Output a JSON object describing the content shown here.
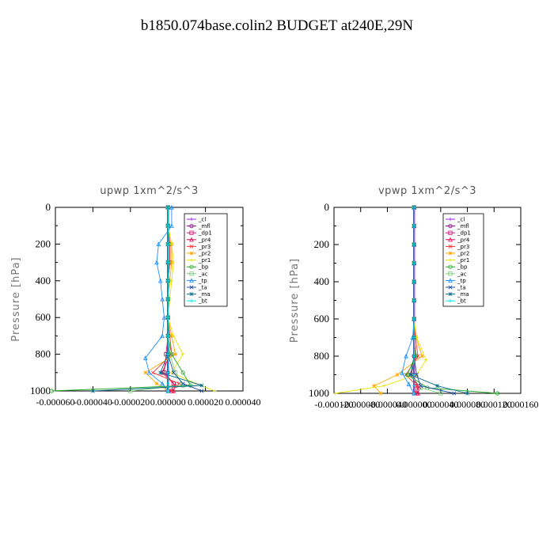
{
  "title": "b1850.074base.colin2  BUDGET at240E,29N",
  "colors": {
    "_cl": "#a020f0",
    "_mfl": "#8b008b",
    "_dp1": "#cd1076",
    "_pr4": "#e5004c",
    "_pr3": "#ff3030",
    "_pr2": "#ffa500",
    "_pr1": "#e6e600",
    "_bp": "#22aa22",
    "_ac": "#7ccd7c",
    "_tp": "#1e90ff",
    "_ta": "#1f4fa0",
    "_ma": "#00688b",
    "_bt": "#00e5ee"
  },
  "chart_data": [
    {
      "type": "line",
      "title": "upwp   1xm^2/s^3",
      "ylabel": "Pressure [hPa]",
      "xlabel": "",
      "ylim": [
        1000,
        0
      ],
      "xlim": [
        -6e-05,
        4e-05
      ],
      "yticks": [
        "0",
        "200",
        "400",
        "600",
        "800",
        "1000"
      ],
      "xticks": [
        "-0.000060",
        "-0.000040",
        "-0.000020",
        "0.000000",
        "0.000020",
        "0.000040"
      ],
      "legend": [
        "_cl",
        "_mfl",
        "_dp1",
        "_pr4",
        "_pr3",
        "_pr2",
        "_pr1",
        "_bp",
        "_ac",
        "_tp",
        "_ta",
        "_ma",
        "_bt"
      ],
      "legend_position": "top-right",
      "series": [
        {
          "name": "_cl",
          "x": [
            0,
            0,
            0,
            0,
            0,
            0,
            0,
            0,
            0,
            0,
            0
          ],
          "y": [
            0,
            100,
            200,
            300,
            400,
            500,
            600,
            700,
            800,
            900,
            1000
          ]
        },
        {
          "name": "_mfl",
          "x": [
            0,
            0,
            0,
            0,
            0,
            0,
            0,
            0,
            0,
            0,
            0
          ],
          "y": [
            0,
            100,
            200,
            300,
            400,
            500,
            600,
            700,
            800,
            900,
            1000
          ]
        },
        {
          "name": "_dp1",
          "x": [
            0,
            0,
            1e-06,
            1e-06,
            0,
            0,
            0,
            0,
            -1e-06,
            -2e-06,
            3e-06,
            2e-06
          ],
          "y": [
            0,
            100,
            200,
            300,
            400,
            500,
            600,
            700,
            800,
            900,
            960,
            1000
          ]
        },
        {
          "name": "_pr4",
          "x": [
            0,
            0,
            0,
            0,
            0,
            0,
            0,
            0,
            1e-06,
            -3e-06,
            4e-06,
            3e-06
          ],
          "y": [
            0,
            100,
            200,
            300,
            400,
            500,
            600,
            700,
            800,
            900,
            970,
            1000
          ]
        },
        {
          "name": "_pr3",
          "x": [
            0,
            0,
            1e-06,
            1e-06,
            0,
            0,
            0,
            1e-06,
            2e-06,
            -8e-06,
            6e-06,
            2e-06
          ],
          "y": [
            0,
            100,
            200,
            300,
            400,
            500,
            600,
            700,
            800,
            900,
            960,
            1000
          ]
        },
        {
          "name": "_pr2",
          "x": [
            0,
            0,
            2e-06,
            2e-06,
            1e-06,
            0,
            0,
            2e-06,
            4e-06,
            -1.2e-05,
            -6e-06,
            0
          ],
          "y": [
            0,
            100,
            200,
            300,
            400,
            500,
            600,
            700,
            800,
            900,
            960,
            1000
          ]
        },
        {
          "name": "_pr1",
          "x": [
            0,
            0,
            2e-06,
            3e-06,
            2e-06,
            1e-06,
            0,
            3e-06,
            8e-06,
            2e-06,
            1.5e-05,
            2.5e-05
          ],
          "y": [
            0,
            100,
            200,
            300,
            400,
            500,
            600,
            700,
            800,
            900,
            960,
            1000
          ]
        },
        {
          "name": "_bp",
          "x": [
            0,
            0,
            0,
            0,
            0,
            0,
            0,
            0,
            2e-06,
            8e-06,
            1.2e-05,
            -6.2e-05
          ],
          "y": [
            0,
            100,
            200,
            300,
            400,
            500,
            600,
            700,
            800,
            900,
            970,
            1000
          ]
        },
        {
          "name": "_ac",
          "x": [
            0,
            0,
            0,
            0,
            0,
            0,
            0,
            0,
            1e-06,
            4e-06,
            8e-06,
            -2e-05
          ],
          "y": [
            0,
            100,
            200,
            300,
            400,
            500,
            600,
            700,
            800,
            900,
            970,
            1000
          ]
        },
        {
          "name": "_tp",
          "x": [
            2e-06,
            2e-06,
            -5e-06,
            -6e-06,
            -4e-06,
            -3e-06,
            -2e-06,
            -3e-06,
            -1.2e-05,
            -1e-05,
            -3e-06,
            0
          ],
          "y": [
            0,
            100,
            200,
            300,
            400,
            500,
            600,
            700,
            820,
            900,
            960,
            1000
          ]
        },
        {
          "name": "_ta",
          "x": [
            0,
            0,
            0,
            0,
            0,
            0,
            0,
            0,
            0,
            3e-06,
            8e-06,
            1.8e-05
          ],
          "y": [
            0,
            100,
            200,
            300,
            400,
            500,
            600,
            700,
            800,
            900,
            960,
            1000
          ]
        },
        {
          "name": "_ma",
          "x": [
            0,
            0,
            0,
            0,
            0,
            0,
            0,
            0,
            0,
            -4e-06,
            1.8e-05,
            -4e-05
          ],
          "y": [
            0,
            100,
            200,
            300,
            400,
            500,
            600,
            700,
            800,
            900,
            970,
            1000
          ]
        },
        {
          "name": "_bt",
          "x": [
            0,
            0,
            0,
            0,
            0,
            0,
            0,
            0,
            0,
            0,
            0,
            0
          ],
          "y": [
            0,
            100,
            200,
            300,
            400,
            500,
            600,
            700,
            800,
            900,
            960,
            1000
          ]
        }
      ]
    },
    {
      "type": "line",
      "title": "vpwp   1xm^2/s^3",
      "ylabel": "Pressure [hPa]",
      "xlabel": "",
      "ylim": [
        1000,
        0
      ],
      "xlim": [
        -0.00012,
        0.00016
      ],
      "yticks": [
        "0",
        "200",
        "400",
        "600",
        "800",
        "1000"
      ],
      "xticks": [
        "-0.000120",
        "-0.000080",
        "-0.000040",
        "0.000000",
        "0.000040",
        "0.000080",
        "0.000120",
        "0.000160"
      ],
      "legend": [
        "_cl",
        "_mfl",
        "_dp1",
        "_pr4",
        "_pr3",
        "_pr2",
        "_pr1",
        "_bp",
        "_ac",
        "_tp",
        "_ta",
        "_ma",
        "_bt"
      ],
      "legend_position": "top-right",
      "series": [
        {
          "name": "_cl",
          "x": [
            0,
            0,
            0,
            0,
            0,
            0,
            0,
            0,
            0,
            0,
            0
          ],
          "y": [
            0,
            100,
            200,
            300,
            400,
            500,
            600,
            700,
            800,
            900,
            1000
          ]
        },
        {
          "name": "_mfl",
          "x": [
            0,
            0,
            0,
            0,
            0,
            0,
            0,
            0,
            0,
            0,
            0
          ],
          "y": [
            0,
            100,
            200,
            300,
            400,
            500,
            600,
            700,
            800,
            900,
            1000
          ]
        },
        {
          "name": "_dp1",
          "x": [
            0,
            0,
            0,
            0,
            0,
            0,
            0,
            0,
            2e-06,
            -4e-06,
            6e-06,
            4e-06
          ],
          "y": [
            0,
            100,
            200,
            300,
            400,
            500,
            600,
            700,
            800,
            900,
            960,
            1000
          ]
        },
        {
          "name": "_pr4",
          "x": [
            0,
            0,
            0,
            0,
            0,
            0,
            0,
            0,
            3e-06,
            -6e-06,
            8e-06,
            6e-06
          ],
          "y": [
            0,
            100,
            200,
            300,
            400,
            500,
            600,
            700,
            800,
            900,
            970,
            1000
          ]
        },
        {
          "name": "_pr3",
          "x": [
            0,
            0,
            0,
            0,
            0,
            0,
            0,
            2e-06,
            6e-06,
            -1.2e-05,
            4e-06,
            2e-06
          ],
          "y": [
            0,
            100,
            200,
            300,
            400,
            500,
            600,
            700,
            800,
            900,
            960,
            1000
          ]
        },
        {
          "name": "_pr2",
          "x": [
            0,
            0,
            0,
            0,
            0,
            0,
            0,
            3e-06,
            1.2e-05,
            -2.5e-05,
            -6e-05,
            -5e-05
          ],
          "y": [
            0,
            100,
            200,
            300,
            400,
            500,
            600,
            700,
            800,
            900,
            960,
            1000
          ]
        },
        {
          "name": "_pr1",
          "x": [
            0,
            0,
            0,
            0,
            0,
            0,
            0,
            4e-06,
            1.8e-05,
            4e-06,
            -4.5e-05,
            -0.000118
          ],
          "y": [
            0,
            100,
            200,
            300,
            400,
            500,
            600,
            700,
            820,
            900,
            960,
            1000
          ]
        },
        {
          "name": "_bp",
          "x": [
            0,
            0,
            0,
            0,
            0,
            0,
            0,
            0,
            2e-06,
            -1e-05,
            2e-05,
            0.000125
          ],
          "y": [
            0,
            100,
            200,
            300,
            400,
            500,
            600,
            700,
            800,
            900,
            970,
            1000
          ]
        },
        {
          "name": "_ac",
          "x": [
            0,
            0,
            0,
            0,
            0,
            0,
            0,
            0,
            1e-06,
            -5e-06,
            1e-05,
            4e-05
          ],
          "y": [
            0,
            100,
            200,
            300,
            400,
            500,
            600,
            700,
            800,
            900,
            970,
            1000
          ]
        },
        {
          "name": "_tp",
          "x": [
            0,
            0,
            0,
            0,
            0,
            0,
            0,
            -2e-06,
            -1.2e-05,
            -1.8e-05,
            -8e-06,
            0
          ],
          "y": [
            0,
            100,
            200,
            300,
            400,
            500,
            600,
            700,
            800,
            890,
            950,
            1000
          ]
        },
        {
          "name": "_ta",
          "x": [
            0,
            0,
            0,
            0,
            0,
            0,
            0,
            0,
            0,
            4e-06,
            1e-05,
            6e-05
          ],
          "y": [
            0,
            100,
            200,
            300,
            400,
            500,
            600,
            700,
            800,
            900,
            960,
            1000
          ]
        },
        {
          "name": "_ma",
          "x": [
            0,
            0,
            0,
            0,
            0,
            0,
            0,
            0,
            0,
            -5e-06,
            3.5e-05,
            8e-05
          ],
          "y": [
            0,
            100,
            200,
            300,
            400,
            500,
            600,
            700,
            800,
            900,
            960,
            1000
          ]
        },
        {
          "name": "_bt",
          "x": [
            0,
            0,
            0,
            0,
            0,
            0,
            0,
            0,
            0,
            0,
            0,
            0
          ],
          "y": [
            0,
            100,
            200,
            300,
            400,
            500,
            600,
            700,
            800,
            900,
            960,
            1000
          ]
        }
      ]
    }
  ]
}
